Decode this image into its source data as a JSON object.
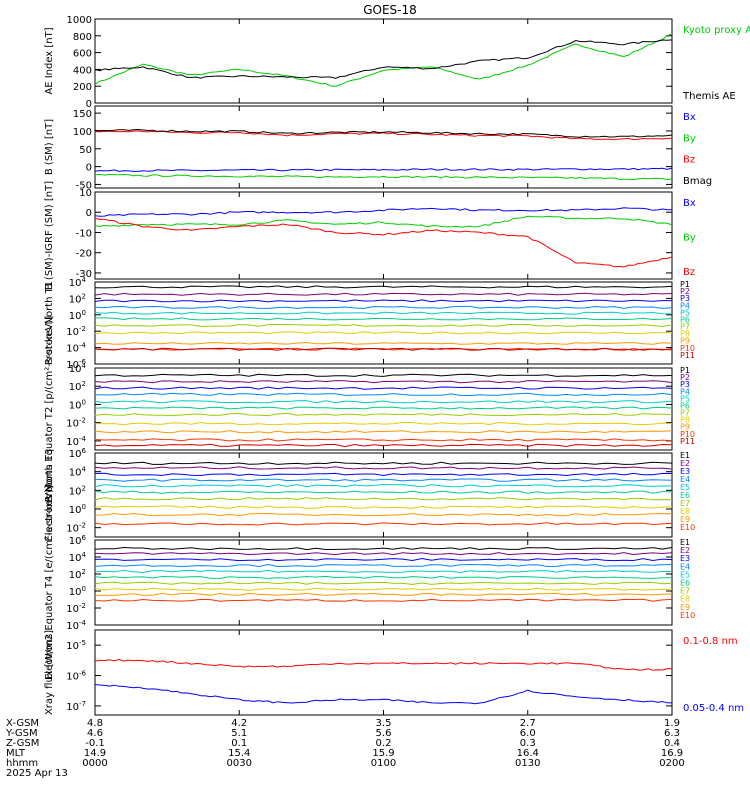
{
  "title": "GOES-18",
  "colors": {
    "black": "#000000",
    "blue": "#0000ff",
    "green": "#00cc00",
    "red": "#ff0000",
    "P1": "#000000",
    "P2": "#7f007f",
    "P3": "#0000ff",
    "P4": "#0088ff",
    "P5": "#00cccc",
    "P6": "#00cc88",
    "P7": "#99cc00",
    "P8": "#e6cc00",
    "P9": "#ff9900",
    "P10": "#ff3300",
    "P11": "#cc0000"
  },
  "chart_data": [
    {
      "type": "line",
      "ylabel": "AE Index [nT]",
      "ylim": [
        0,
        1000
      ],
      "yticks": [
        "1000",
        "800",
        "600",
        "400",
        "200",
        "0"
      ],
      "x": [
        "0000",
        "0010",
        "0020",
        "0030",
        "0040",
        "0050",
        "0100",
        "0110",
        "0120",
        "0130",
        "0140",
        "0150",
        "0200"
      ],
      "series": [
        {
          "name": "Kyoto proxy AE",
          "color": "green",
          "values": [
            230,
            460,
            330,
            400,
            320,
            200,
            390,
            430,
            280,
            450,
            700,
            550,
            820
          ]
        },
        {
          "name": "Themis AE",
          "color": "black",
          "values": [
            390,
            430,
            300,
            320,
            310,
            300,
            430,
            410,
            500,
            540,
            740,
            700,
            760
          ]
        }
      ],
      "legend": [
        "Kyoto proxy AE",
        "Themis AE"
      ]
    },
    {
      "type": "line",
      "ylabel": "B (SM) [nT]",
      "ylim": [
        -60,
        170
      ],
      "yticks": [
        "150",
        "100",
        "50",
        "0",
        "-50"
      ],
      "x": [
        "0000",
        "0010",
        "0020",
        "0030",
        "0040",
        "0050",
        "0100",
        "0110",
        "0120",
        "0130",
        "0140",
        "0150",
        "0200"
      ],
      "series": [
        {
          "name": "Bx",
          "color": "blue",
          "values": [
            -12,
            -11,
            -11,
            -10,
            -10,
            -9,
            -9,
            -8,
            -8,
            -8,
            -7,
            -7,
            -6
          ]
        },
        {
          "name": "By",
          "color": "green",
          "values": [
            -23,
            -25,
            -26,
            -27,
            -28,
            -29,
            -28,
            -29,
            -30,
            -31,
            -32,
            -34,
            -35
          ]
        },
        {
          "name": "Bz",
          "color": "red",
          "values": [
            98,
            99,
            95,
            96,
            88,
            92,
            93,
            90,
            87,
            86,
            78,
            77,
            80
          ]
        },
        {
          "name": "Bmag",
          "color": "black",
          "values": [
            101,
            102,
            99,
            99,
            93,
            96,
            97,
            95,
            92,
            91,
            85,
            84,
            87
          ]
        }
      ],
      "legend": [
        "Bx",
        "By",
        "Bz",
        "Bmag"
      ]
    },
    {
      "type": "line",
      "ylabel": "B (SM)-IGRF (SM) [nT]",
      "ylim": [
        -33,
        10
      ],
      "yticks": [
        "10",
        "0",
        "-10",
        "-20",
        "-30"
      ],
      "x": [
        "0000",
        "0010",
        "0020",
        "0030",
        "0040",
        "0050",
        "0100",
        "0110",
        "0120",
        "0130",
        "0140",
        "0150",
        "0200"
      ],
      "series": [
        {
          "name": "Bx",
          "color": "blue",
          "values": [
            -2,
            -1,
            -1,
            0,
            0,
            0,
            1,
            2,
            1,
            1,
            1,
            2,
            1
          ]
        },
        {
          "name": "By",
          "color": "green",
          "values": [
            -7,
            -6,
            -6,
            -6,
            -4,
            -6,
            -5,
            -7,
            -7,
            -2,
            -3,
            -3,
            -6
          ]
        },
        {
          "name": "Bz",
          "color": "red",
          "values": [
            -3,
            -7,
            -9,
            -7,
            -6,
            -10,
            -11,
            -9,
            -10,
            -12,
            -25,
            -27,
            -22
          ]
        }
      ],
      "legend": [
        "Bx",
        "By",
        "Bz"
      ]
    },
    {
      "type": "line",
      "ylabel": "Protons North T1",
      "ylog": [
        -6,
        4
      ],
      "yticks": [
        "10^4",
        "10^2",
        "10^0",
        "10^-2",
        "10^-4",
        "10^-6"
      ],
      "channels": [
        "P1",
        "P2",
        "P3",
        "P4",
        "P5",
        "P6",
        "P7",
        "P8",
        "P9",
        "P10",
        "P11"
      ],
      "log_levels": [
        3.4,
        2.5,
        1.7,
        0.9,
        0.2,
        -0.5,
        -1.3,
        -2.2,
        -3.5,
        -4.2,
        -4.2
      ],
      "legend": [
        "P1",
        "P2",
        "P3",
        "P4",
        "P5",
        "P6",
        "P7",
        "P8",
        "P9",
        "P10",
        "P11"
      ]
    },
    {
      "type": "line",
      "ylabel": "Protons Equator T2 [p/(cm²-s-sr-keV)]",
      "ylog": [
        -5,
        4
      ],
      "yticks": [
        "10^4",
        "10^2",
        "10^0",
        "10^-2",
        "10^-4"
      ],
      "channels": [
        "P1",
        "P2",
        "P3",
        "P4",
        "P5",
        "P6",
        "P7",
        "P8",
        "P9",
        "P10",
        "P11"
      ],
      "log_levels": [
        3.2,
        2.5,
        1.8,
        1.1,
        0.3,
        -0.4,
        -1.1,
        -2.1,
        -3.0,
        -3.9,
        -4.5
      ],
      "legend": [
        "P1",
        "P2",
        "P3",
        "P4",
        "P5",
        "P6",
        "P7",
        "P8",
        "P9",
        "P10",
        "P11"
      ]
    },
    {
      "type": "line",
      "ylabel": "Electrons North T3",
      "ylog": [
        -3,
        6
      ],
      "yticks": [
        "10^6",
        "10^4",
        "10^2",
        "10^0",
        "10^-2"
      ],
      "channels": [
        "E1",
        "E2",
        "E3",
        "E4",
        "E5",
        "E6",
        "E7",
        "E8",
        "E9",
        "E10"
      ],
      "log_levels": [
        4.9,
        4.4,
        3.7,
        3.1,
        2.5,
        1.8,
        1.1,
        0.2,
        -0.6,
        -1.6
      ],
      "legend": [
        "E1",
        "E2",
        "E3",
        "E4",
        "E5",
        "E6",
        "E7",
        "E8",
        "E9",
        "E10"
      ]
    },
    {
      "type": "line",
      "ylabel": "Electrons Equator T4 [e/(cm²-s-sr-keV)]",
      "ylog": [
        -4,
        6
      ],
      "yticks": [
        "10^6",
        "10^4",
        "10^2",
        "10^0",
        "10^-2",
        "10^-4"
      ],
      "channels": [
        "E1",
        "E2",
        "E3",
        "E4",
        "E5",
        "E6",
        "E7",
        "E8",
        "E9",
        "E10"
      ],
      "log_levels": [
        5.0,
        4.4,
        3.7,
        3.0,
        2.3,
        1.6,
        0.9,
        0.2,
        -0.4,
        -1.1
      ],
      "legend": [
        "E1",
        "E2",
        "E3",
        "E4",
        "E5",
        "E6",
        "E7",
        "E8",
        "E9",
        "E10"
      ]
    },
    {
      "type": "line",
      "ylabel": "Xray flux [W/m2]",
      "ylog": [
        -7.3,
        -4.5
      ],
      "yticks": [
        "10^-5",
        "10^-6",
        "10^-7"
      ],
      "x": [
        "0000",
        "0010",
        "0020",
        "0030",
        "0040",
        "0050",
        "0100",
        "0110",
        "0120",
        "0130",
        "0140",
        "0150",
        "0200"
      ],
      "series": [
        {
          "name": "0.1-0.8 nm",
          "color": "red",
          "values": [
            -5.5,
            -5.5,
            -5.6,
            -5.7,
            -5.7,
            -5.6,
            -5.6,
            -5.6,
            -5.6,
            -5.6,
            -5.6,
            -5.8,
            -5.8
          ]
        },
        {
          "name": "0.05-0.4 nm",
          "color": "blue",
          "values": [
            -6.3,
            -6.4,
            -6.6,
            -6.8,
            -6.9,
            -6.8,
            -6.8,
            -6.9,
            -6.9,
            -6.5,
            -6.7,
            -6.8,
            -6.9
          ]
        }
      ],
      "legend": [
        "0.1-0.8 nm",
        "0.05-0.4 nm"
      ]
    }
  ],
  "xaxis": {
    "tick_labels": [
      "0000",
      "0030",
      "0100",
      "0130",
      "0200"
    ],
    "rows": [
      {
        "label": "X-GSM",
        "values": [
          "4.8",
          "4.2",
          "3.5",
          "2.7",
          "1.9"
        ]
      },
      {
        "label": "Y-GSM",
        "values": [
          "4.6",
          "5.1",
          "5.6",
          "6.0",
          "6.3"
        ]
      },
      {
        "label": "Z-GSM",
        "values": [
          "-0.1",
          "0.1",
          "0.2",
          "0.3",
          "0.4"
        ]
      },
      {
        "label": "MLT",
        "values": [
          "14.9",
          "15.4",
          "15.9",
          "16.4",
          "16.9"
        ]
      },
      {
        "label": "hhmm",
        "values": [
          "0000",
          "0030",
          "0100",
          "0130",
          "0200"
        ]
      }
    ],
    "date": "2025 Apr 13"
  }
}
